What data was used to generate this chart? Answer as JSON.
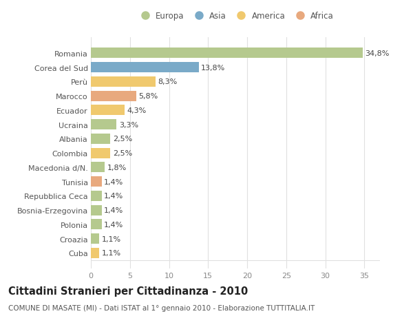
{
  "categories": [
    "Romania",
    "Corea del Sud",
    "Perù",
    "Marocco",
    "Ecuador",
    "Ucraina",
    "Albania",
    "Colombia",
    "Macedonia d/N.",
    "Tunisia",
    "Repubblica Ceca",
    "Bosnia-Erzegovina",
    "Polonia",
    "Croazia",
    "Cuba"
  ],
  "values": [
    34.8,
    13.8,
    8.3,
    5.8,
    4.3,
    3.3,
    2.5,
    2.5,
    1.8,
    1.4,
    1.4,
    1.4,
    1.4,
    1.1,
    1.1
  ],
  "labels": [
    "34,8%",
    "13,8%",
    "8,3%",
    "5,8%",
    "4,3%",
    "3,3%",
    "2,5%",
    "2,5%",
    "1,8%",
    "1,4%",
    "1,4%",
    "1,4%",
    "1,4%",
    "1,1%",
    "1,1%"
  ],
  "colors": [
    "#b5c98e",
    "#7aaac8",
    "#f0c96e",
    "#e8a97e",
    "#f0c96e",
    "#b5c98e",
    "#b5c98e",
    "#f0c96e",
    "#b5c98e",
    "#e8a97e",
    "#b5c98e",
    "#b5c98e",
    "#b5c98e",
    "#b5c98e",
    "#f0c96e"
  ],
  "legend_labels": [
    "Europa",
    "Asia",
    "America",
    "Africa"
  ],
  "legend_colors": [
    "#b5c98e",
    "#7aaac8",
    "#f0c96e",
    "#e8a97e"
  ],
  "title": "Cittadini Stranieri per Cittadinanza - 2010",
  "subtitle": "COMUNE DI MASATE (MI) - Dati ISTAT al 1° gennaio 2010 - Elaborazione TUTTITALIA.IT",
  "xlim": [
    0,
    37
  ],
  "xticks": [
    0,
    5,
    10,
    15,
    20,
    25,
    30,
    35
  ],
  "bg_color": "#ffffff",
  "grid_color": "#e0e0e0",
  "bar_height": 0.72,
  "label_fontsize": 8,
  "tick_fontsize": 8,
  "ytick_fontsize": 8,
  "title_fontsize": 10.5,
  "subtitle_fontsize": 7.5
}
